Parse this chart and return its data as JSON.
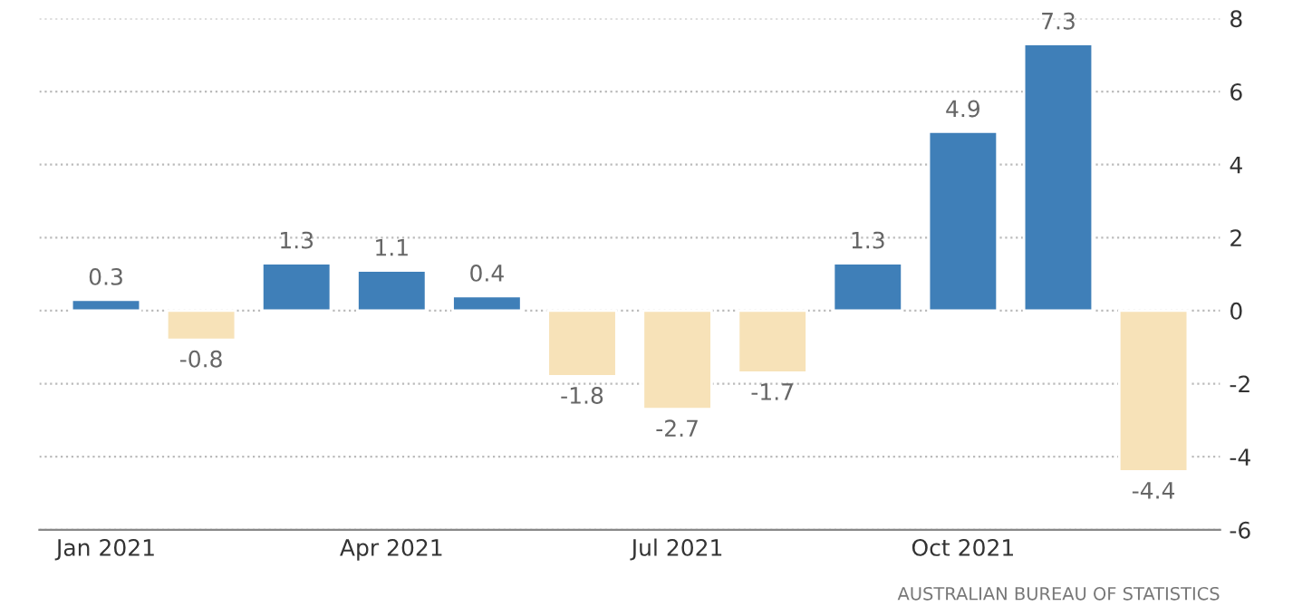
{
  "chart_data": {
    "type": "bar",
    "categories": [
      "Jan 2021",
      null,
      null,
      "Apr 2021",
      null,
      null,
      "Jul 2021",
      null,
      null,
      "Oct 2021",
      null,
      null
    ],
    "values": [
      0.3,
      -0.8,
      1.3,
      1.1,
      0.4,
      -1.8,
      -2.7,
      -1.7,
      1.3,
      4.9,
      7.3,
      -4.4
    ],
    "colors": [
      "#3f7fb8",
      "#f7e2b8",
      "#3f7fb8",
      "#3f7fb8",
      "#3f7fb8",
      "#f7e2b8",
      "#f7e2b8",
      "#f7e2b8",
      "#3f7fb8",
      "#3f7fb8",
      "#3f7fb8",
      "#f7e2b8"
    ],
    "ylim": [
      -6,
      8
    ],
    "yticks": [
      -6,
      -4,
      -2,
      0,
      2,
      4,
      6,
      8
    ],
    "grid": "y",
    "data_labels": true,
    "annotations": [
      "AUSTRALIAN BUREAU OF STATISTICS"
    ]
  }
}
